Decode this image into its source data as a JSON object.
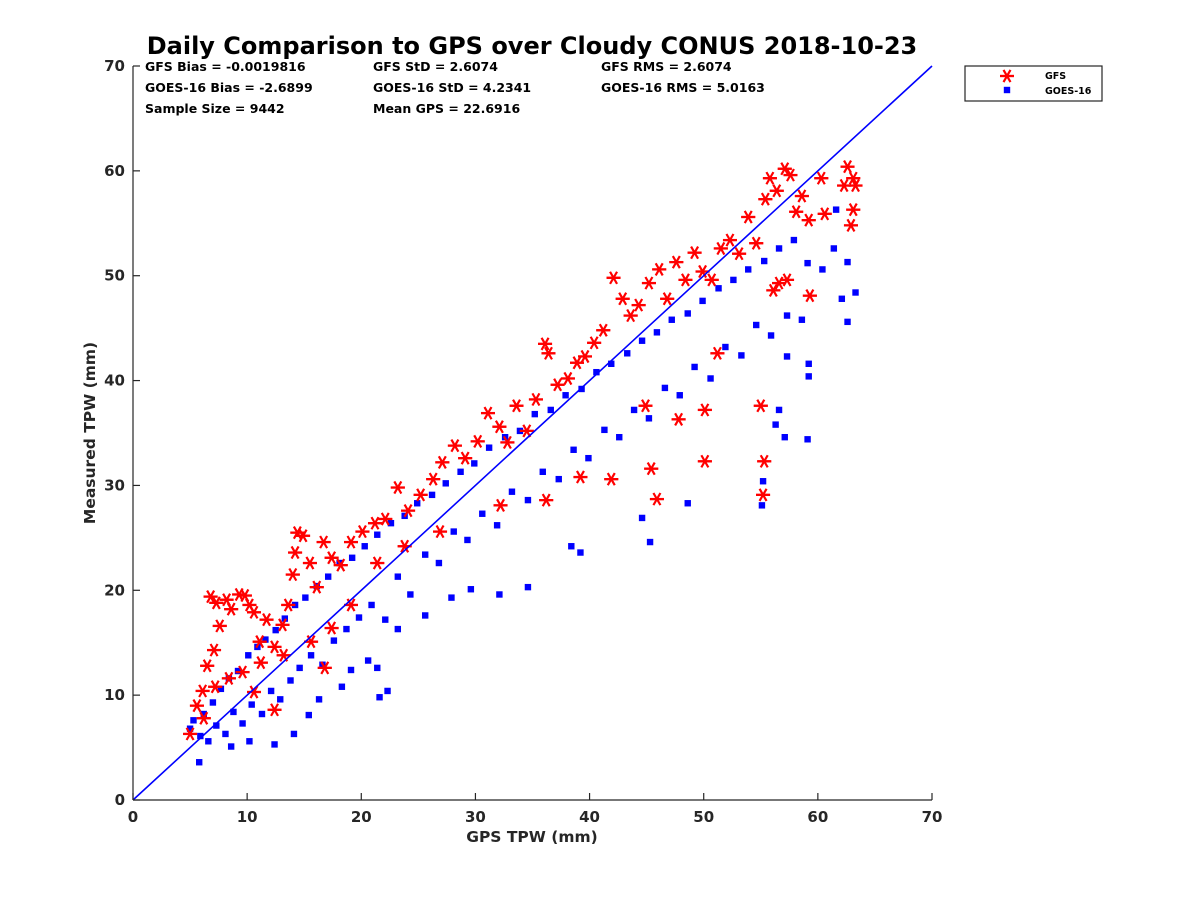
{
  "chart_data": {
    "type": "scatter",
    "title": "Daily Comparison to GPS over Cloudy CONUS 2018-10-23",
    "xlabel": "GPS TPW (mm)",
    "ylabel": "Measured TPW (mm)",
    "xlim": [
      0,
      70
    ],
    "ylim": [
      0,
      70
    ],
    "xticks": [
      "0",
      "10",
      "20",
      "30",
      "40",
      "50",
      "60",
      "70"
    ],
    "yticks": [
      "0",
      "10",
      "20",
      "30",
      "40",
      "50",
      "60",
      "70"
    ],
    "grid": false,
    "legend_position": "outside-top-right",
    "stats": {
      "gfs_bias": "GFS Bias = -0.0019816",
      "gfs_std": "GFS StD = 2.6074",
      "gfs_rms": "GFS RMS = 2.6074",
      "goes_bias": "GOES-16 Bias = -2.6899",
      "goes_std": "GOES-16 StD = 4.2341",
      "goes_rms": "GOES-16 RMS = 5.0163",
      "sample_size": "Sample Size = 9442",
      "mean_gps": "Mean GPS = 22.6916"
    },
    "reference_line": {
      "type": "one-to-one",
      "x": [
        0,
        70
      ],
      "y": [
        0,
        70
      ],
      "color": "#0000ff"
    },
    "series": [
      {
        "name": "GFS",
        "marker": "asterisk",
        "color": "#ff0000",
        "points": [
          [
            5,
            6.3
          ],
          [
            5.6,
            9
          ],
          [
            6.1,
            10.4
          ],
          [
            6.5,
            12.8
          ],
          [
            6.8,
            19.4
          ],
          [
            7.1,
            14.3
          ],
          [
            7.3,
            18.8
          ],
          [
            7.6,
            16.6
          ],
          [
            8.2,
            19.1
          ],
          [
            8.6,
            18.2
          ],
          [
            9.3,
            19.6
          ],
          [
            9.8,
            19.5
          ],
          [
            10.2,
            18.6
          ],
          [
            10.6,
            17.9
          ],
          [
            11.1,
            15.1
          ],
          [
            11.7,
            17.2
          ],
          [
            12.4,
            14.6
          ],
          [
            13.1,
            16.7
          ],
          [
            13.6,
            18.6
          ],
          [
            14,
            21.5
          ],
          [
            14.2,
            23.6
          ],
          [
            14.4,
            25.5
          ],
          [
            14.9,
            25.2
          ],
          [
            15.5,
            22.6
          ],
          [
            16.1,
            20.3
          ],
          [
            16.7,
            24.6
          ],
          [
            17.4,
            23.1
          ],
          [
            18.2,
            22.4
          ],
          [
            19.1,
            24.6
          ],
          [
            20.1,
            25.6
          ],
          [
            21.2,
            26.4
          ],
          [
            22.1,
            26.8
          ],
          [
            23.2,
            29.8
          ],
          [
            24.1,
            27.6
          ],
          [
            25.2,
            29.1
          ],
          [
            26.3,
            30.6
          ],
          [
            27.1,
            32.2
          ],
          [
            28.2,
            33.8
          ],
          [
            29.1,
            32.6
          ],
          [
            30.2,
            34.2
          ],
          [
            31.1,
            36.9
          ],
          [
            32.1,
            35.6
          ],
          [
            32.8,
            34.1
          ],
          [
            33.6,
            37.6
          ],
          [
            34.5,
            35.2
          ],
          [
            35.3,
            38.2
          ],
          [
            36.1,
            43.5
          ],
          [
            36.4,
            42.6
          ],
          [
            37.2,
            39.6
          ],
          [
            38.1,
            40.2
          ],
          [
            38.9,
            41.7
          ],
          [
            39.6,
            42.3
          ],
          [
            40.4,
            43.6
          ],
          [
            41.2,
            44.8
          ],
          [
            42.1,
            49.8
          ],
          [
            42.9,
            47.8
          ],
          [
            43.6,
            46.2
          ],
          [
            44.3,
            47.2
          ],
          [
            45.2,
            49.3
          ],
          [
            46.1,
            50.6
          ],
          [
            46.8,
            47.8
          ],
          [
            47.6,
            51.3
          ],
          [
            48.4,
            49.6
          ],
          [
            49.2,
            52.2
          ],
          [
            49.9,
            50.4
          ],
          [
            50.7,
            49.6
          ],
          [
            51.5,
            52.6
          ],
          [
            52.3,
            53.4
          ],
          [
            53.1,
            52.1
          ],
          [
            53.9,
            55.6
          ],
          [
            54.6,
            53.1
          ],
          [
            55.4,
            57.3
          ],
          [
            55.8,
            59.3
          ],
          [
            56.4,
            58.1
          ],
          [
            57.1,
            60.2
          ],
          [
            57.6,
            59.6
          ],
          [
            58.1,
            56.1
          ],
          [
            58.6,
            57.6
          ],
          [
            59.2,
            55.3
          ],
          [
            60.3,
            59.3
          ],
          [
            60.6,
            55.9
          ],
          [
            62.3,
            58.6
          ],
          [
            62.6,
            60.4
          ],
          [
            63.1,
            59.3
          ],
          [
            63.3,
            58.6
          ],
          [
            63.1,
            56.3
          ],
          [
            62.9,
            54.8
          ],
          [
            56.6,
            49.3
          ],
          [
            57.3,
            49.6
          ],
          [
            56.1,
            48.6
          ],
          [
            59.3,
            48.1
          ],
          [
            51.2,
            42.6
          ],
          [
            44.9,
            37.6
          ],
          [
            50.1,
            37.2
          ],
          [
            47.8,
            36.3
          ],
          [
            55,
            37.6
          ],
          [
            50.1,
            32.3
          ],
          [
            45.4,
            31.6
          ],
          [
            41.9,
            30.6
          ],
          [
            39.2,
            30.8
          ],
          [
            45.9,
            28.7
          ],
          [
            55.3,
            32.3
          ],
          [
            55.2,
            29.1
          ],
          [
            36.2,
            28.6
          ],
          [
            32.2,
            28.1
          ],
          [
            26.9,
            25.6
          ],
          [
            23.8,
            24.2
          ],
          [
            21.4,
            22.6
          ],
          [
            19.1,
            18.6
          ],
          [
            17.4,
            16.4
          ],
          [
            15.6,
            15.1
          ],
          [
            13.2,
            13.8
          ],
          [
            11.2,
            13.1
          ],
          [
            9.6,
            12.2
          ],
          [
            8.4,
            11.6
          ],
          [
            7.2,
            10.8
          ],
          [
            6.2,
            7.8
          ],
          [
            12.4,
            8.6
          ],
          [
            10.6,
            10.3
          ],
          [
            16.8,
            12.6
          ]
        ]
      },
      {
        "name": "GOES-16",
        "marker": "square",
        "color": "#0000ff",
        "points": [
          [
            5,
            6.8
          ],
          [
            5.3,
            7.6
          ],
          [
            5.8,
            3.6
          ],
          [
            5.9,
            6.1
          ],
          [
            6.2,
            8.2
          ],
          [
            6.6,
            5.6
          ],
          [
            7,
            9.3
          ],
          [
            7.3,
            7.1
          ],
          [
            7.7,
            10.6
          ],
          [
            8.1,
            6.3
          ],
          [
            8.4,
            11.6
          ],
          [
            8.8,
            8.4
          ],
          [
            9.2,
            12.3
          ],
          [
            9.6,
            7.3
          ],
          [
            10.1,
            13.8
          ],
          [
            10.4,
            9.1
          ],
          [
            10.9,
            14.6
          ],
          [
            11.3,
            8.2
          ],
          [
            11.6,
            15.3
          ],
          [
            12.1,
            10.4
          ],
          [
            12.5,
            16.2
          ],
          [
            12.9,
            9.6
          ],
          [
            13.3,
            17.3
          ],
          [
            13.8,
            11.4
          ],
          [
            14.2,
            18.6
          ],
          [
            14.6,
            12.6
          ],
          [
            15.1,
            19.3
          ],
          [
            15.6,
            13.8
          ],
          [
            16.1,
            20.4
          ],
          [
            16.6,
            12.9
          ],
          [
            17.1,
            21.3
          ],
          [
            17.6,
            15.2
          ],
          [
            18.1,
            22.6
          ],
          [
            18.7,
            16.3
          ],
          [
            19.2,
            23.1
          ],
          [
            19.8,
            17.4
          ],
          [
            20.3,
            24.2
          ],
          [
            20.9,
            18.6
          ],
          [
            21.4,
            25.3
          ],
          [
            22.1,
            17.2
          ],
          [
            22.6,
            26.4
          ],
          [
            23.2,
            21.3
          ],
          [
            23.8,
            27.1
          ],
          [
            24.3,
            19.6
          ],
          [
            24.9,
            28.3
          ],
          [
            25.6,
            23.4
          ],
          [
            26.2,
            29.1
          ],
          [
            26.8,
            22.6
          ],
          [
            27.4,
            30.2
          ],
          [
            28.1,
            25.6
          ],
          [
            28.7,
            31.3
          ],
          [
            29.3,
            24.8
          ],
          [
            29.9,
            32.1
          ],
          [
            30.6,
            27.3
          ],
          [
            31.2,
            33.6
          ],
          [
            31.9,
            26.2
          ],
          [
            32.6,
            34.6
          ],
          [
            33.2,
            29.4
          ],
          [
            33.9,
            35.2
          ],
          [
            34.6,
            28.6
          ],
          [
            35.2,
            36.8
          ],
          [
            35.9,
            31.3
          ],
          [
            36.6,
            37.2
          ],
          [
            37.3,
            30.6
          ],
          [
            37.9,
            38.6
          ],
          [
            38.6,
            33.4
          ],
          [
            39.3,
            39.2
          ],
          [
            39.9,
            32.6
          ],
          [
            40.6,
            40.8
          ],
          [
            41.3,
            35.3
          ],
          [
            41.9,
            41.6
          ],
          [
            42.6,
            34.6
          ],
          [
            43.3,
            42.6
          ],
          [
            43.9,
            37.2
          ],
          [
            44.6,
            43.8
          ],
          [
            45.2,
            36.4
          ],
          [
            45.9,
            44.6
          ],
          [
            46.6,
            39.3
          ],
          [
            47.2,
            45.8
          ],
          [
            47.9,
            38.6
          ],
          [
            48.6,
            46.4
          ],
          [
            49.2,
            41.3
          ],
          [
            49.9,
            47.6
          ],
          [
            50.6,
            40.2
          ],
          [
            51.3,
            48.8
          ],
          [
            51.9,
            43.2
          ],
          [
            52.6,
            49.6
          ],
          [
            53.3,
            42.4
          ],
          [
            53.9,
            50.6
          ],
          [
            54.6,
            45.3
          ],
          [
            55.3,
            51.4
          ],
          [
            55.9,
            44.3
          ],
          [
            56.6,
            52.6
          ],
          [
            57.3,
            46.2
          ],
          [
            57.9,
            53.4
          ],
          [
            58.6,
            45.8
          ],
          [
            59.2,
            41.6
          ],
          [
            59.2,
            40.4
          ],
          [
            57.3,
            42.3
          ],
          [
            56.6,
            37.2
          ],
          [
            56.3,
            35.8
          ],
          [
            57.1,
            34.6
          ],
          [
            59.1,
            34.4
          ],
          [
            55.1,
            28.1
          ],
          [
            55.2,
            30.4
          ],
          [
            48.6,
            28.3
          ],
          [
            45.3,
            24.6
          ],
          [
            44.6,
            26.9
          ],
          [
            38.4,
            24.2
          ],
          [
            39.2,
            23.6
          ],
          [
            34.6,
            20.3
          ],
          [
            32.1,
            19.6
          ],
          [
            29.6,
            20.1
          ],
          [
            27.9,
            19.3
          ],
          [
            25.6,
            17.6
          ],
          [
            23.2,
            16.3
          ],
          [
            21.4,
            12.6
          ],
          [
            20.6,
            13.3
          ],
          [
            19.1,
            12.4
          ],
          [
            18.3,
            10.8
          ],
          [
            22.3,
            10.4
          ],
          [
            21.6,
            9.8
          ],
          [
            16.3,
            9.6
          ],
          [
            15.4,
            8.1
          ],
          [
            14.1,
            6.3
          ],
          [
            12.4,
            5.3
          ],
          [
            10.2,
            5.6
          ],
          [
            8.6,
            5.1
          ],
          [
            62.6,
            45.6
          ],
          [
            62.1,
            47.8
          ],
          [
            63.3,
            48.4
          ],
          [
            62.6,
            51.3
          ],
          [
            61.4,
            52.6
          ],
          [
            60.4,
            50.6
          ],
          [
            59.1,
            51.2
          ],
          [
            61.6,
            56.3
          ]
        ]
      }
    ]
  }
}
